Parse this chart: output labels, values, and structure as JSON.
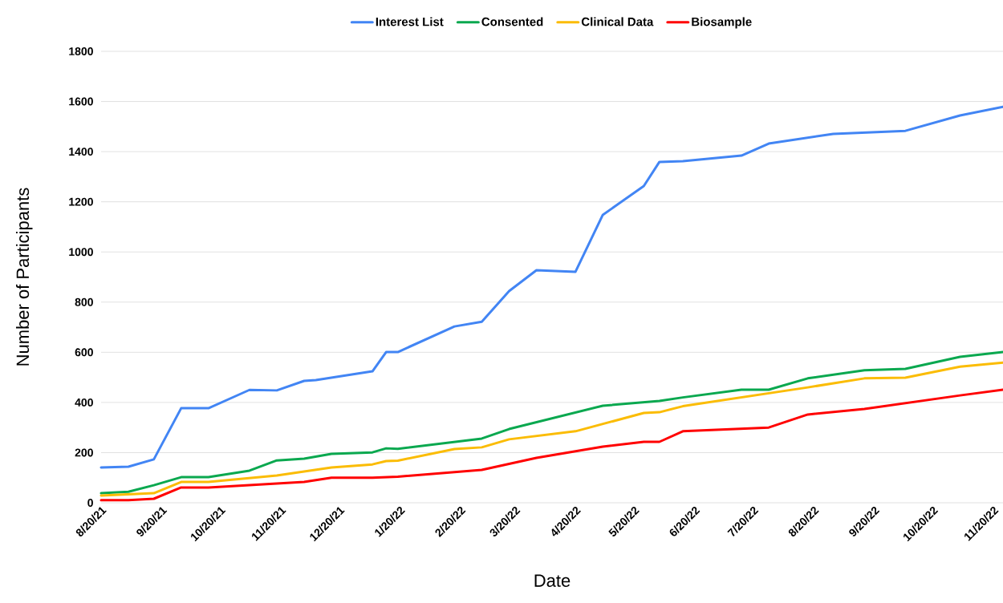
{
  "chart_data": {
    "type": "line",
    "xlabel": "Date",
    "ylabel": "Number of Participants",
    "xlim": [
      "2021-08-20",
      "2022-11-25"
    ],
    "ylim": [
      0,
      1800
    ],
    "yticks": [
      0,
      200,
      400,
      600,
      800,
      1000,
      1200,
      1400,
      1600,
      1800
    ],
    "xticks": [
      {
        "value": "2021-08-20",
        "label": "8/20/21"
      },
      {
        "value": "2021-09-20",
        "label": "9/20/21"
      },
      {
        "value": "2021-10-20",
        "label": "10/20/21"
      },
      {
        "value": "2021-11-20",
        "label": "11/20/21"
      },
      {
        "value": "2021-12-20",
        "label": "12/20/21"
      },
      {
        "value": "2022-01-20",
        "label": "1/20/22"
      },
      {
        "value": "2022-02-20",
        "label": "2/20/22"
      },
      {
        "value": "2022-03-20",
        "label": "3/20/22"
      },
      {
        "value": "2022-04-20",
        "label": "4/20/22"
      },
      {
        "value": "2022-05-20",
        "label": "5/20/22"
      },
      {
        "value": "2022-06-20",
        "label": "6/20/22"
      },
      {
        "value": "2022-07-20",
        "label": "7/20/22"
      },
      {
        "value": "2022-08-20",
        "label": "8/20/22"
      },
      {
        "value": "2022-09-20",
        "label": "9/20/22"
      },
      {
        "value": "2022-10-20",
        "label": "10/20/22"
      },
      {
        "value": "2022-11-20",
        "label": "11/20/22"
      }
    ],
    "grid": "y",
    "legend": "top",
    "series": [
      {
        "name": "Interest List",
        "color": "#4285f4",
        "x": [
          "2021-08-20",
          "2021-09-03",
          "2021-09-16",
          "2021-09-30",
          "2021-10-14",
          "2021-11-04",
          "2021-11-18",
          "2021-12-02",
          "2021-12-08",
          "2022-01-06",
          "2022-01-13",
          "2022-01-19",
          "2022-02-17",
          "2022-03-03",
          "2022-03-17",
          "2022-03-31",
          "2022-04-20",
          "2022-05-04",
          "2022-05-25",
          "2022-06-02",
          "2022-06-14",
          "2022-07-14",
          "2022-07-28",
          "2022-08-30",
          "2022-10-06",
          "2022-11-03",
          "2022-11-25"
        ],
        "values": [
          141,
          144,
          173,
          377,
          377,
          450,
          448,
          486,
          489,
          524,
          601,
          601,
          703,
          722,
          844,
          927,
          921,
          1148,
          1263,
          1359,
          1362,
          1384,
          1432,
          1471,
          1483,
          1544,
          1579
        ]
      },
      {
        "name": "Consented",
        "color": "#0aa84f",
        "x": [
          "2021-08-20",
          "2021-09-03",
          "2021-09-16",
          "2021-09-30",
          "2021-10-14",
          "2021-11-04",
          "2021-11-18",
          "2021-12-02",
          "2021-12-16",
          "2022-01-06",
          "2022-01-13",
          "2022-01-19",
          "2022-03-03",
          "2022-03-17",
          "2022-05-04",
          "2022-06-02",
          "2022-06-14",
          "2022-07-14",
          "2022-07-28",
          "2022-08-17",
          "2022-09-15",
          "2022-10-06",
          "2022-11-03",
          "2022-11-25"
        ],
        "values": [
          38,
          44,
          70,
          102,
          102,
          128,
          169,
          176,
          195,
          201,
          217,
          215,
          256,
          294,
          387,
          406,
          420,
          451,
          451,
          496,
          528,
          534,
          582,
          601
        ]
      },
      {
        "name": "Clinical Data",
        "color": "#fbbc04",
        "x": [
          "2021-08-20",
          "2021-09-16",
          "2021-09-30",
          "2021-10-14",
          "2021-11-18",
          "2021-12-16",
          "2022-01-06",
          "2022-01-13",
          "2022-01-19",
          "2022-02-17",
          "2022-03-03",
          "2022-03-17",
          "2022-04-20",
          "2022-05-25",
          "2022-06-02",
          "2022-06-14",
          "2022-08-17",
          "2022-09-15",
          "2022-10-06",
          "2022-11-03",
          "2022-11-25"
        ],
        "values": [
          29,
          38,
          83,
          83,
          109,
          141,
          153,
          166,
          168,
          214,
          221,
          253,
          285,
          358,
          361,
          385,
          460,
          496,
          499,
          543,
          559
        ]
      },
      {
        "name": "Biosample",
        "color": "#ff0000",
        "x": [
          "2021-08-20",
          "2021-09-03",
          "2021-09-16",
          "2021-09-30",
          "2021-10-14",
          "2021-11-18",
          "2021-12-02",
          "2021-12-16",
          "2022-01-06",
          "2022-01-19",
          "2022-03-03",
          "2022-03-31",
          "2022-05-04",
          "2022-05-25",
          "2022-06-02",
          "2022-06-14",
          "2022-07-28",
          "2022-08-17",
          "2022-09-15",
          "2022-11-03",
          "2022-11-25"
        ],
        "values": [
          10,
          10,
          16,
          61,
          61,
          77,
          83,
          100,
          100,
          104,
          131,
          179,
          224,
          243,
          243,
          285,
          300,
          352,
          374,
          428,
          451
        ]
      }
    ]
  }
}
